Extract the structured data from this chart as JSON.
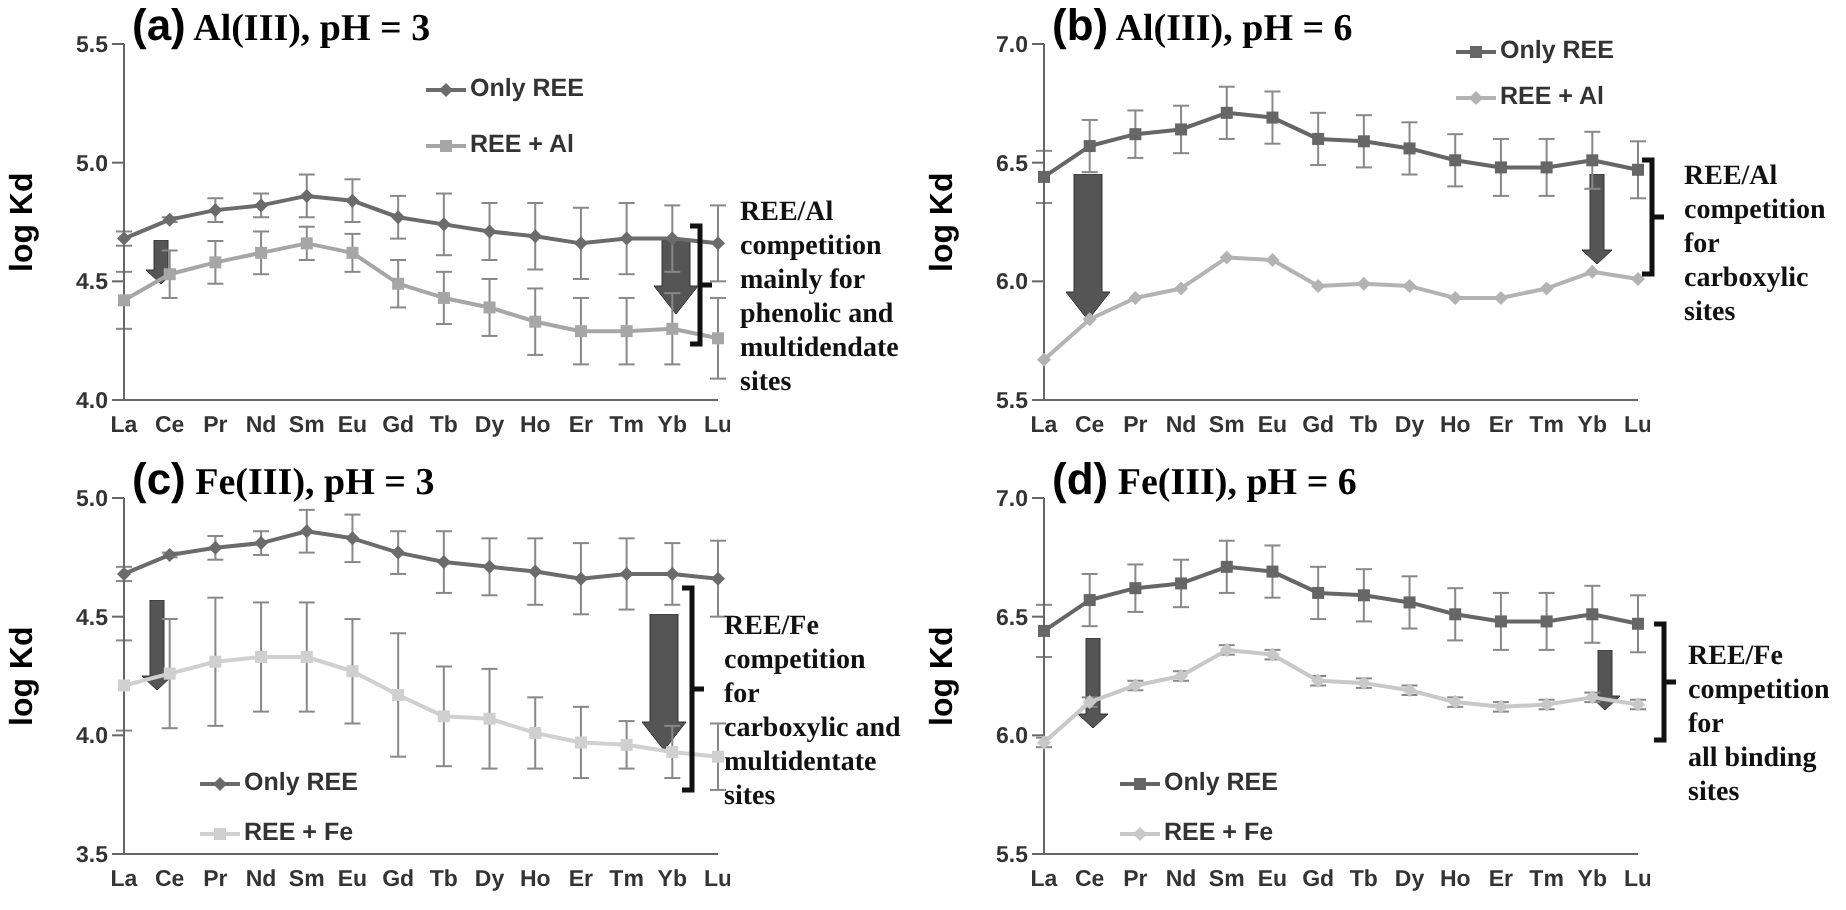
{
  "chart_data": [
    {
      "type": "line",
      "title": "(a) Al(III), pH = 3",
      "ylabel": "log Kd",
      "categories": [
        "La",
        "Ce",
        "Pr",
        "Nd",
        "Sm",
        "Eu",
        "Gd",
        "Tb",
        "Dy",
        "Ho",
        "Er",
        "Tm",
        "Yb",
        "Lu"
      ],
      "ylim": [
        4.0,
        5.5
      ],
      "yticks": [
        {
          "value": 4,
          "label": "4.0"
        },
        4.5,
        {
          "value": 5,
          "label": "5.0"
        },
        5.5
      ],
      "grid": false,
      "legend": "top",
      "annotations": [
        "REE/Al\ncompetition\nmainly for\nphenolic and\nmultidendate\nsites"
      ],
      "series": [
        {
          "name": "Only REE",
          "color": "#6b6b6b",
          "marker": "diamond",
          "values": [
            4.68,
            4.76,
            4.8,
            4.82,
            4.86,
            4.84,
            4.77,
            4.74,
            4.71,
            4.69,
            4.66,
            4.68,
            4.68,
            4.66
          ],
          "errors": [
            0.03,
            0.01,
            0.05,
            0.05,
            0.09,
            0.09,
            0.09,
            0.13,
            0.12,
            0.14,
            0.15,
            0.15,
            0.14,
            0.16
          ]
        },
        {
          "name": "REE + Al",
          "color": "#a6a6a6",
          "marker": "square",
          "values": [
            4.42,
            4.53,
            4.58,
            4.62,
            4.66,
            4.62,
            4.49,
            4.43,
            4.39,
            4.33,
            4.29,
            4.29,
            4.3,
            4.26
          ],
          "errors": [
            0.12,
            0.1,
            0.09,
            0.09,
            0.07,
            0.08,
            0.1,
            0.11,
            0.12,
            0.14,
            0.14,
            0.14,
            0.15,
            0.17
          ]
        }
      ]
    },
    {
      "type": "line",
      "title": "(b) Al(III), pH = 6",
      "ylabel": "log Kd",
      "categories": [
        "La",
        "Ce",
        "Pr",
        "Nd",
        "Sm",
        "Eu",
        "Gd",
        "Tb",
        "Dy",
        "Ho",
        "Er",
        "Tm",
        "Yb",
        "Lu"
      ],
      "ylim": [
        5.5,
        7.0
      ],
      "yticks": [
        5.5,
        {
          "value": 6,
          "label": "6.0"
        },
        6.5,
        {
          "value": 7,
          "label": "7.0"
        }
      ],
      "grid": false,
      "legend": "top right",
      "annotations": [
        "REE/Al\ncompetition\nfor\ncarboxylic\nsites"
      ],
      "series": [
        {
          "name": "Only REE",
          "color": "#666666",
          "marker": "square",
          "values": [
            6.44,
            6.57,
            6.62,
            6.64,
            6.71,
            6.69,
            6.6,
            6.59,
            6.56,
            6.51,
            6.48,
            6.48,
            6.51,
            6.47
          ],
          "errors": [
            0.11,
            0.11,
            0.1,
            0.1,
            0.11,
            0.11,
            0.11,
            0.11,
            0.11,
            0.11,
            0.12,
            0.12,
            0.12,
            0.12
          ]
        },
        {
          "name": "REE + Al",
          "color": "#b3b3b3",
          "marker": "diamond",
          "values": [
            5.67,
            5.84,
            5.93,
            5.97,
            6.1,
            6.09,
            5.98,
            5.99,
            5.98,
            5.93,
            5.93,
            5.97,
            6.04,
            6.01
          ]
        }
      ]
    },
    {
      "type": "line",
      "title": "(c) Fe(III), pH = 3",
      "ylabel": "log Kd",
      "categories": [
        "La",
        "Ce",
        "Pr",
        "Nd",
        "Sm",
        "Eu",
        "Gd",
        "Tb",
        "Dy",
        "Ho",
        "Er",
        "Tm",
        "Yb",
        "Lu"
      ],
      "ylim": [
        3.5,
        5.0
      ],
      "yticks": [
        3.5,
        {
          "value": 4,
          "label": "4.0"
        },
        4.5,
        {
          "value": 5,
          "label": "5.0"
        }
      ],
      "grid": false,
      "legend": "bottom left",
      "annotations": [
        "REE/Fe\ncompetition\nfor\ncarboxylic and\nmultidentate\nsites"
      ],
      "series": [
        {
          "name": "Only REE",
          "color": "#6b6b6b",
          "marker": "diamond",
          "values": [
            4.68,
            4.76,
            4.79,
            4.81,
            4.86,
            4.83,
            4.77,
            4.73,
            4.71,
            4.69,
            4.66,
            4.68,
            4.68,
            4.66
          ],
          "errors": [
            0.03,
            0.01,
            0.05,
            0.05,
            0.09,
            0.1,
            0.09,
            0.13,
            0.12,
            0.14,
            0.15,
            0.15,
            0.13,
            0.16
          ]
        },
        {
          "name": "REE + Fe",
          "color": "#d0d0d0",
          "marker": "square",
          "values": [
            4.21,
            4.26,
            4.31,
            4.33,
            4.33,
            4.27,
            4.17,
            4.08,
            4.07,
            4.01,
            3.97,
            3.96,
            3.93,
            3.91
          ],
          "errors": [
            0.19,
            0.23,
            0.27,
            0.23,
            0.23,
            0.22,
            0.26,
            0.21,
            0.21,
            0.15,
            0.15,
            0.1,
            0.11,
            0.14
          ]
        }
      ]
    },
    {
      "type": "line",
      "title": "(d) Fe(III), pH = 6",
      "ylabel": "log Kd",
      "categories": [
        "La",
        "Ce",
        "Pr",
        "Nd",
        "Sm",
        "Eu",
        "Gd",
        "Tb",
        "Dy",
        "Ho",
        "Er",
        "Tm",
        "Yb",
        "Lu"
      ],
      "ylim": [
        5.5,
        7.0
      ],
      "yticks": [
        5.5,
        {
          "value": 6,
          "label": "6.0"
        },
        6.5,
        {
          "value": 7,
          "label": "7.0"
        }
      ],
      "grid": false,
      "legend": "bottom left",
      "annotations": [
        "REE/Fe\ncompetition\nfor\nall binding\nsites"
      ],
      "series": [
        {
          "name": "Only REE",
          "color": "#666666",
          "marker": "square",
          "values": [
            6.44,
            6.57,
            6.62,
            6.64,
            6.71,
            6.69,
            6.6,
            6.59,
            6.56,
            6.51,
            6.48,
            6.48,
            6.51,
            6.47
          ],
          "errors": [
            0.11,
            0.11,
            0.1,
            0.1,
            0.11,
            0.11,
            0.11,
            0.11,
            0.11,
            0.11,
            0.12,
            0.12,
            0.12,
            0.12
          ]
        },
        {
          "name": "REE + Fe",
          "color": "#c8c8c8",
          "marker": "diamond",
          "values": [
            5.97,
            6.14,
            6.21,
            6.25,
            6.36,
            6.34,
            6.23,
            6.22,
            6.19,
            6.14,
            6.12,
            6.13,
            6.16,
            6.13
          ],
          "errors": [
            0.02,
            0.02,
            0.02,
            0.02,
            0.02,
            0.02,
            0.02,
            0.02,
            0.02,
            0.02,
            0.02,
            0.02,
            0.02,
            0.02
          ]
        }
      ]
    }
  ]
}
